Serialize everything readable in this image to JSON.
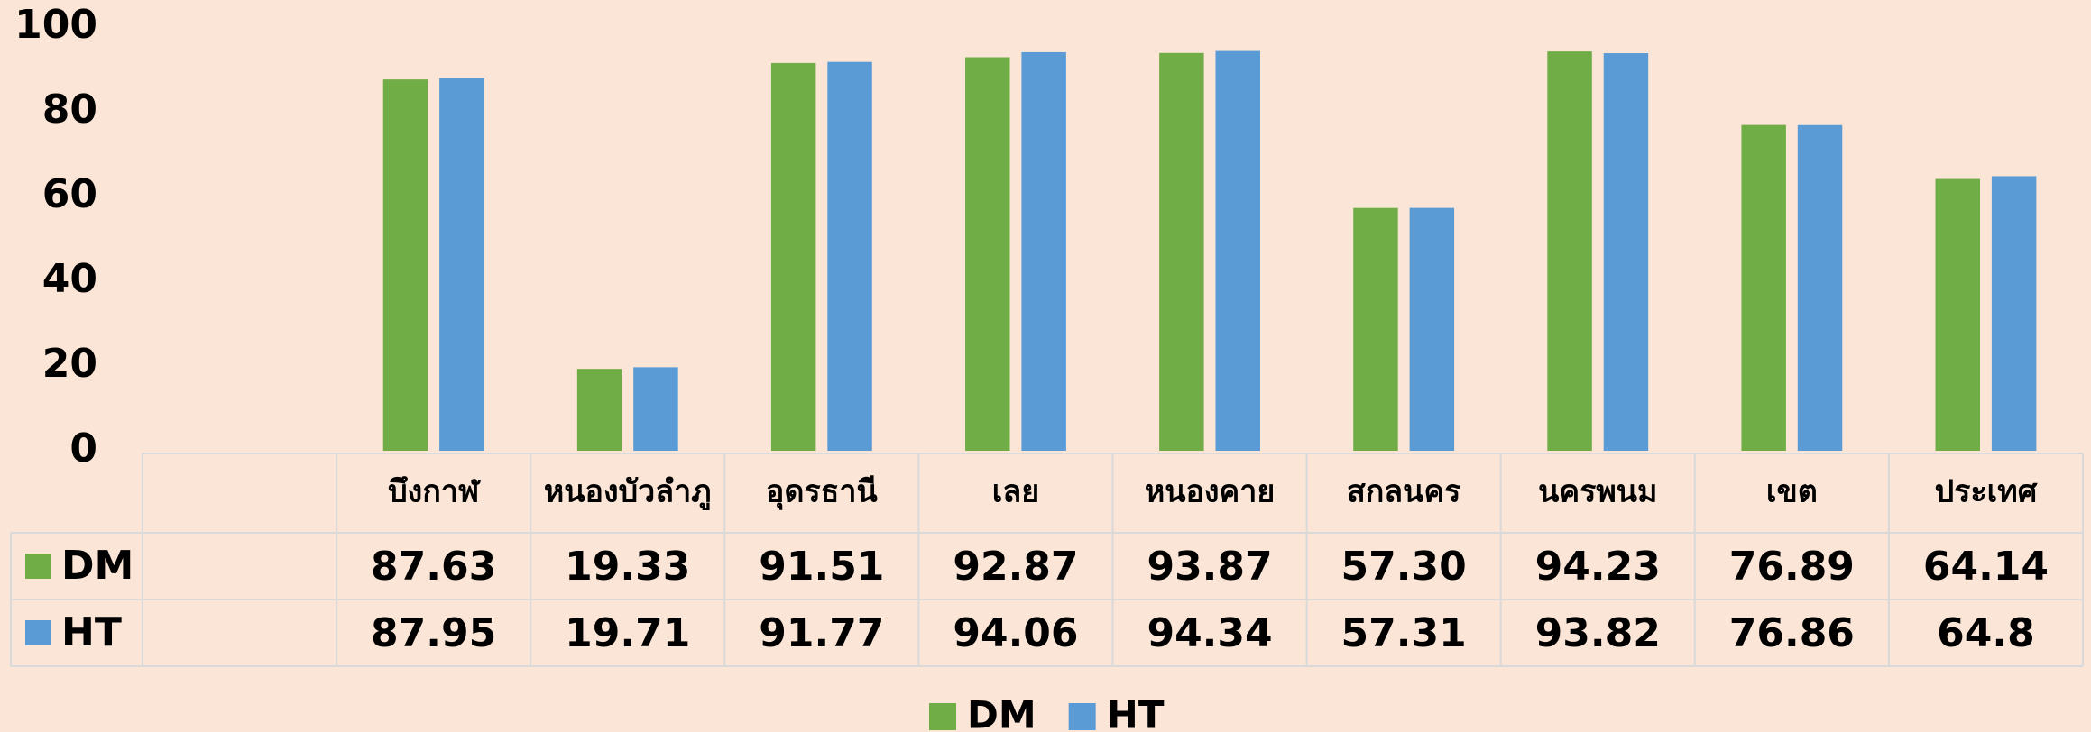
{
  "chart_data": {
    "type": "bar",
    "categories": [
      null,
      "บึงกาฬ",
      "หนองบัวลำภู",
      "อุดรธานี",
      "เลย",
      "หนองคาย",
      "สกลนคร",
      "นครพนม",
      "เขต",
      "ประเทศ"
    ],
    "series": [
      {
        "name": "DM",
        "color": "#70ad47",
        "values": [
          null,
          87.63,
          19.33,
          91.51,
          92.87,
          93.87,
          57.3,
          94.23,
          76.89,
          64.14
        ],
        "value_labels": [
          null,
          "87.63",
          "19.33",
          "91.51",
          "92.87",
          "93.87",
          "57.30",
          "94.23",
          "76.89",
          "64.14"
        ]
      },
      {
        "name": "HT",
        "color": "#5b9bd5",
        "values": [
          null,
          87.95,
          19.71,
          91.77,
          94.06,
          94.34,
          57.31,
          93.82,
          76.86,
          64.8
        ],
        "value_labels": [
          null,
          "87.95",
          "19.71",
          "91.77",
          "94.06",
          "94.34",
          "57.31",
          "93.82",
          "76.86",
          "64.8"
        ]
      }
    ],
    "ylim": [
      0,
      100
    ],
    "yticks": [
      0,
      20,
      40,
      60,
      80,
      100
    ],
    "grid": false,
    "legend": "bottom",
    "data_table": true
  }
}
